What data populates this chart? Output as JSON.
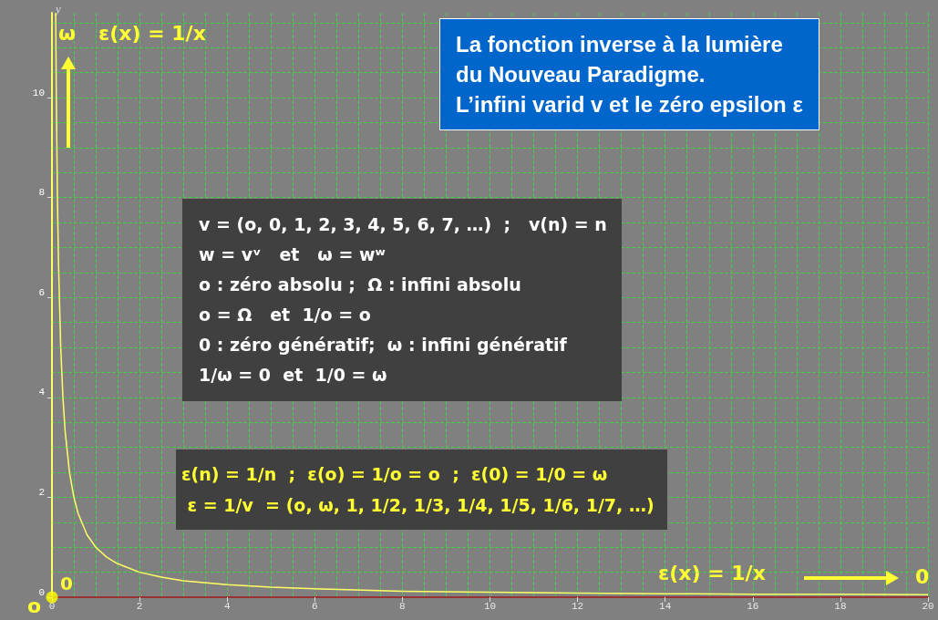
{
  "chart_data": {
    "type": "line",
    "title": "La fonction inverse à la lumière\ndu Nouveau Paradigme.\nL’infini varid v et le zéro epsilon ε",
    "ylabel": "y",
    "annotations": [
      "ω",
      "ε(x) = 1/x",
      "v = (o, 0, 1, 2, 3, 4, 5, 6, 7, …)  ;   v(n) = n\nw = vᵛ   et   ω = wʷ\no : zéro absolu ;  Ω : infini absolu\no = Ω   et  1/o = o\n0 : zéro génératif;  ω : infini génératif\n1/ω = 0  et  1/0 = ω",
      "ε(n) = 1/n  ;  ε(o) = 1/o = o  ;  ε(0) = 1/0 = ω\n ε = 1/v  = (o, ω, 1, 1/2, 1/3, 1/4, 1/5, 1/6, 1/7, …)",
      "ε(x) = 1/x",
      "0",
      "0",
      "o"
    ],
    "series": [
      {
        "marker": "none",
        "color": "#ffff66",
        "x": [
          0.0855,
          0.1,
          0.125,
          0.15,
          0.2,
          0.25,
          0.3,
          0.4,
          0.5,
          0.6,
          0.8,
          1,
          1.25,
          1.5,
          2,
          2.5,
          3,
          4,
          5,
          6,
          8,
          10,
          12,
          14,
          16,
          18,
          20
        ],
        "values": [
          11.7,
          10,
          8,
          6.67,
          5,
          4,
          3.33,
          2.5,
          2,
          1.67,
          1.25,
          1,
          0.8,
          0.67,
          0.5,
          0.4,
          0.33,
          0.25,
          0.2,
          0.17,
          0.12,
          0.1,
          0.08,
          0.07,
          0.06,
          0.06,
          0.05
        ]
      },
      {
        "type": "scatter",
        "marker": "circle",
        "color": "#ffff00",
        "x": [
          0
        ],
        "values": [
          0
        ]
      }
    ],
    "xlim": [
      0,
      20
    ],
    "xticks": [
      0,
      2,
      4,
      6,
      8,
      10,
      12,
      14,
      16,
      18,
      20
    ],
    "ylim": [
      0,
      11.7
    ],
    "yticks": [
      0,
      2,
      4,
      6,
      8,
      10
    ],
    "grid": true
  }
}
